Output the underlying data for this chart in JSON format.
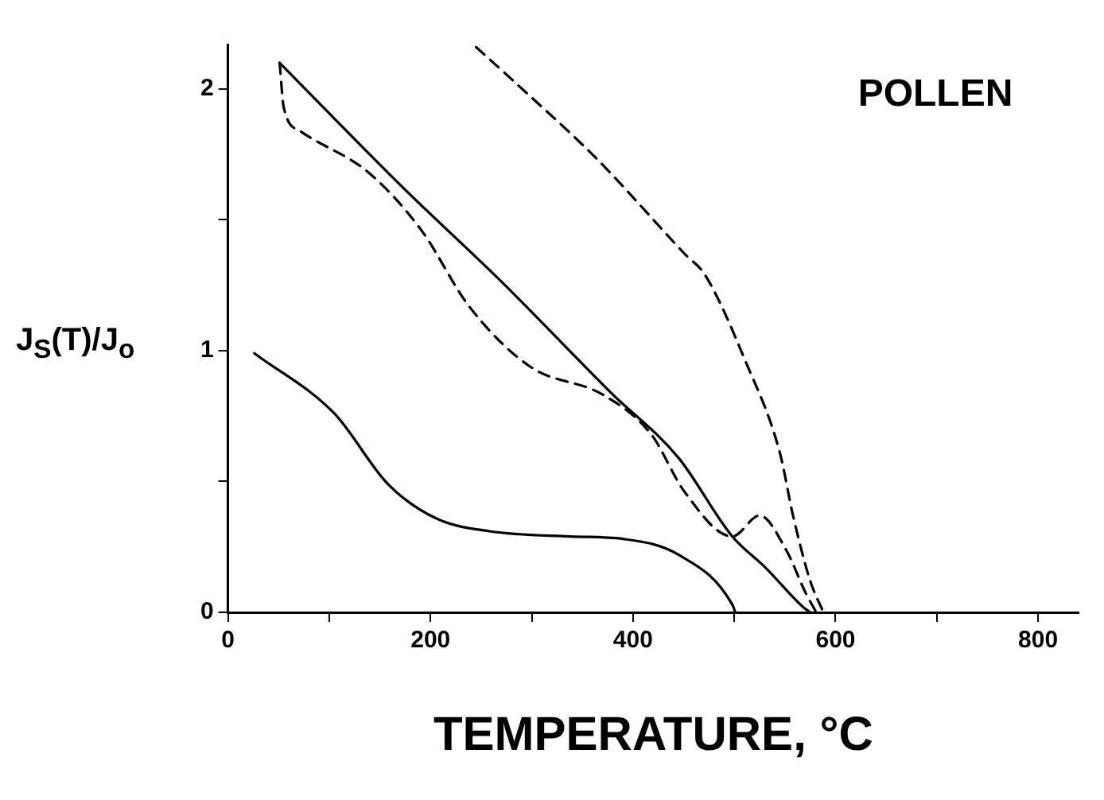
{
  "chart_data": {
    "type": "line",
    "xlabel": "TEMPERATURE, °C",
    "ylabel": "J$_{S}$(T)/J$_{o}$",
    "annotations": [
      "POLLEN"
    ],
    "xlim": [
      0,
      840
    ],
    "ylim": [
      0,
      2.17
    ],
    "xticks": [
      0,
      {
        "value": 100,
        "label": null
      },
      200,
      {
        "value": 300,
        "label": null
      },
      400,
      {
        "value": 500,
        "label": null
      },
      600,
      {
        "value": 700,
        "label": null
      },
      800
    ],
    "yticks": [
      0,
      {
        "value": 0.5,
        "label": null
      },
      1,
      {
        "value": 1.5,
        "label": null
      },
      2
    ],
    "grid": false,
    "legend": false,
    "marker": "none",
    "series": [
      {
        "color": "#000000",
        "line_style": "solid",
        "x": [
          26,
          105,
          158,
          205,
          258,
          338,
          391,
          445,
          498,
          501
        ],
        "values": [
          0.99,
          0.76,
          0.49,
          0.36,
          0.31,
          0.29,
          0.28,
          0.22,
          0.03,
          0
        ]
      },
      {
        "color": "#000000",
        "line_style": "solid",
        "x": [
          51,
          171,
          271,
          378,
          445,
          498,
          531,
          568,
          575
        ],
        "values": [
          2.1,
          1.63,
          1.26,
          0.84,
          0.59,
          0.29,
          0.17,
          0.02,
          0
        ]
      },
      {
        "color": "#000000",
        "line_style": "dashed",
        "x": [
          51,
          55,
          71,
          139,
          191,
          238,
          298,
          371,
          418,
          451,
          498,
          525,
          551,
          571,
          581
        ],
        "values": [
          2.1,
          1.93,
          1.84,
          1.68,
          1.46,
          1.17,
          0.94,
          0.83,
          0.68,
          0.46,
          0.29,
          0.37,
          0.24,
          0.07,
          0
        ]
      },
      {
        "color": "#000000",
        "line_style": "dashed",
        "x": [
          245,
          285,
          365,
          451,
          471,
          511,
          545,
          558,
          575,
          588
        ],
        "values": [
          2.16,
          2.02,
          1.73,
          1.37,
          1.29,
          0.96,
          0.61,
          0.37,
          0.12,
          0
        ]
      }
    ]
  }
}
